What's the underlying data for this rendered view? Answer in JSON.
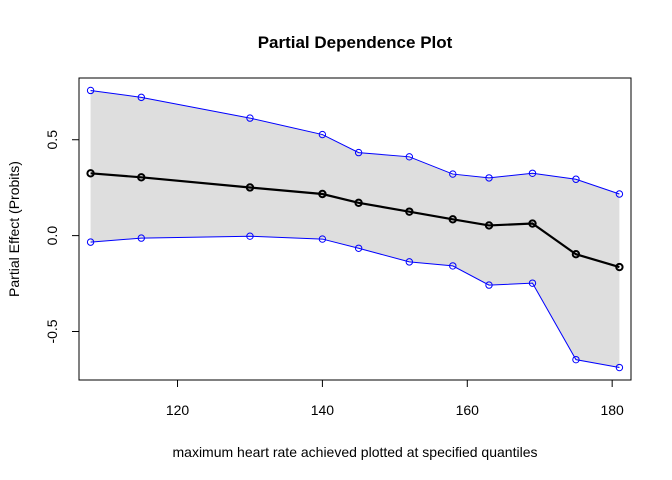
{
  "chart_data": {
    "type": "line",
    "title": "Partial Dependence Plot",
    "xlabel": "maximum heart rate achieved plotted at specified quantiles",
    "ylabel": "Partial Effect (Probits)",
    "xlim": [
      106.4,
      182.6
    ],
    "ylim": [
      -0.753,
      0.822
    ],
    "x_ticks": [
      120,
      140,
      160,
      180
    ],
    "y_ticks": [
      -0.5,
      0.0,
      0.5
    ],
    "x_tick_labels": [
      "120",
      "140",
      "160",
      "180"
    ],
    "y_tick_labels": [
      "-0.5",
      "0.0",
      "0.5"
    ],
    "grid": false,
    "legend": "none",
    "x": [
      108,
      115,
      130,
      140,
      145,
      152,
      158,
      163,
      169,
      175,
      181
    ],
    "series": [
      {
        "role": "estimate",
        "values": [
          0.325,
          0.304,
          0.251,
          0.217,
          0.171,
          0.125,
          0.085,
          0.053,
          0.063,
          -0.097,
          -0.164
        ]
      },
      {
        "role": "upper",
        "values": [
          0.757,
          0.721,
          0.613,
          0.527,
          0.433,
          0.411,
          0.321,
          0.301,
          0.325,
          0.294,
          0.217
        ]
      },
      {
        "role": "lower",
        "values": [
          -0.034,
          -0.013,
          -0.003,
          -0.018,
          -0.066,
          -0.137,
          -0.158,
          -0.258,
          -0.248,
          -0.647,
          -0.688
        ]
      }
    ],
    "colors": {
      "band": "#dedede",
      "bounds": "#0000ff",
      "estimate": "#000000",
      "frame": "#000000"
    }
  }
}
